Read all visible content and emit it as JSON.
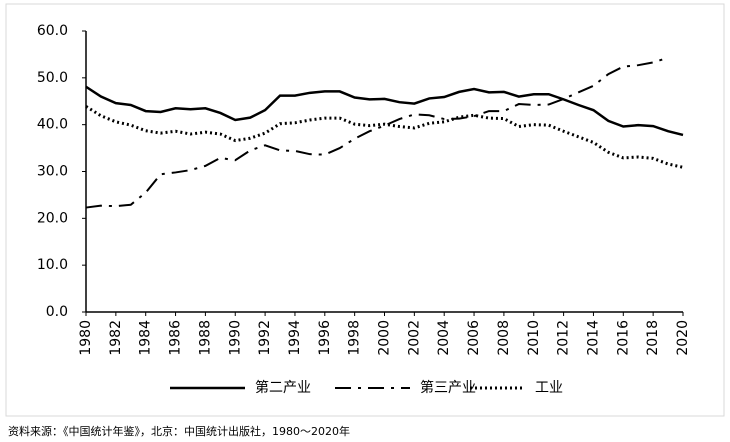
{
  "chart_data": {
    "type": "line",
    "x": [
      1980,
      1981,
      1982,
      1983,
      1984,
      1985,
      1986,
      1987,
      1988,
      1989,
      1990,
      1991,
      1992,
      1993,
      1994,
      1995,
      1996,
      1997,
      1998,
      1999,
      2000,
      2001,
      2002,
      2003,
      2004,
      2005,
      2006,
      2007,
      2008,
      2009,
      2010,
      2011,
      2012,
      2013,
      2014,
      2015,
      2016,
      2017,
      2018,
      2019,
      2020
    ],
    "xlim": [
      1980,
      2020
    ],
    "xticks": [
      1980,
      1982,
      1984,
      1986,
      1988,
      1990,
      1992,
      1994,
      1996,
      1998,
      2000,
      2002,
      2004,
      2006,
      2008,
      2010,
      2012,
      2014,
      2016,
      2018,
      2020
    ],
    "ylim": [
      0,
      60
    ],
    "yticks": [
      {
        "value": 0,
        "label": "0.0"
      },
      {
        "value": 10,
        "label": "10.0"
      },
      {
        "value": 20,
        "label": "20.0"
      },
      {
        "value": 30,
        "label": "30.0"
      },
      {
        "value": 40,
        "label": "40.0"
      },
      {
        "value": 50,
        "label": "50.0"
      },
      {
        "value": 60,
        "label": "60.0"
      }
    ],
    "grid": false,
    "legend": "bottom",
    "series": [
      {
        "name": "第二产业",
        "color": "#000000",
        "style": "solid",
        "values": [
          48.1,
          46.0,
          44.6,
          44.2,
          42.9,
          42.7,
          43.5,
          43.3,
          43.5,
          42.5,
          41.0,
          41.5,
          43.1,
          46.2,
          46.2,
          46.8,
          47.1,
          47.1,
          45.8,
          45.4,
          45.5,
          44.8,
          44.5,
          45.6,
          45.9,
          47.0,
          47.6,
          46.9,
          47.0,
          46.0,
          46.5,
          46.5,
          45.4,
          44.2,
          43.1,
          40.8,
          39.6,
          39.9,
          39.7,
          38.6,
          37.8
        ]
      },
      {
        "name": "第三产业",
        "color": "#000000",
        "style": "dashdot",
        "values": [
          22.3,
          22.7,
          22.6,
          22.9,
          25.5,
          29.4,
          29.8,
          30.3,
          31.2,
          32.9,
          32.4,
          34.5,
          35.6,
          34.5,
          34.4,
          33.7,
          33.6,
          35.0,
          37.0,
          38.6,
          39.8,
          41.2,
          42.2,
          42.0,
          41.2,
          41.3,
          41.8,
          42.9,
          42.9,
          44.4,
          44.2,
          44.3,
          45.5,
          46.9,
          48.3,
          50.8,
          52.4,
          52.7,
          53.3,
          54.3,
          null
        ]
      },
      {
        "name": "工业",
        "color": "#000000",
        "style": "dotted",
        "values": [
          43.9,
          41.9,
          40.6,
          39.9,
          38.7,
          38.2,
          38.6,
          38.0,
          38.4,
          38.0,
          36.6,
          37.1,
          38.2,
          40.2,
          40.4,
          41.0,
          41.4,
          41.4,
          40.1,
          39.8,
          40.1,
          39.6,
          39.3,
          40.3,
          40.6,
          41.6,
          42.0,
          41.4,
          41.3,
          39.6,
          40.0,
          39.9,
          38.6,
          37.4,
          36.2,
          34.1,
          32.9,
          33.1,
          32.8,
          31.6,
          30.9
        ]
      }
    ],
    "note": "资料来源：《中国统计年鉴》，北京：中国统计出版社，1980～2020年"
  }
}
